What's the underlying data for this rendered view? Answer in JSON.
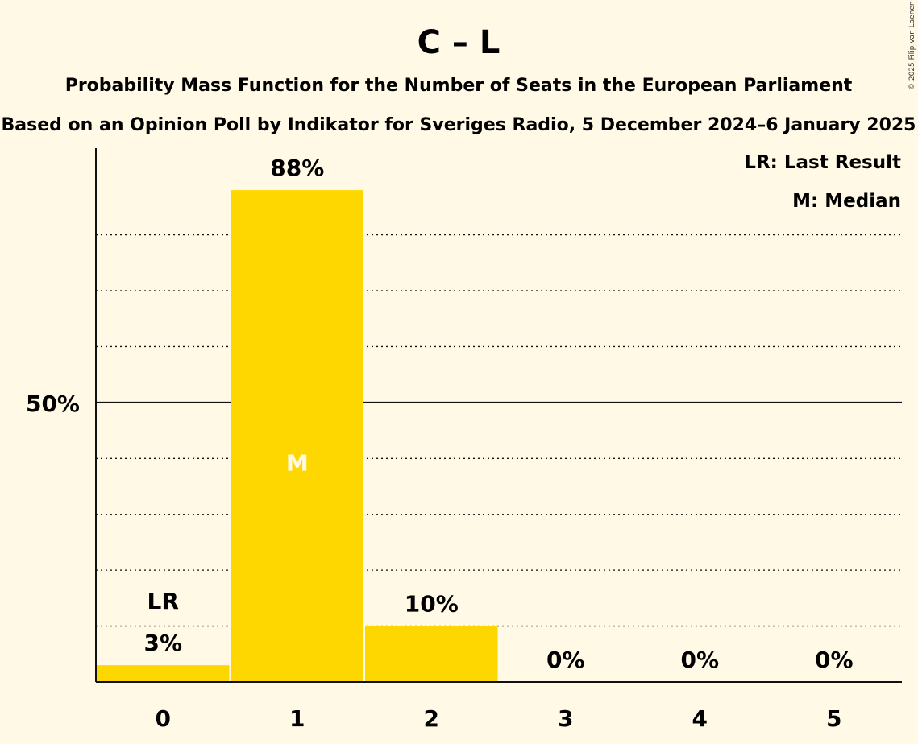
{
  "chart_data": {
    "type": "bar",
    "title": "C – L",
    "subtitle": "Probability Mass Function for the Number of Seats in the European Parliament",
    "subtitle2": "Based on an Opinion Poll by Indikator for Sveriges Radio, 5 December 2024–6 January 2025",
    "copyright": "© 2025 Filip van Laenen",
    "categories": [
      "0",
      "1",
      "2",
      "3",
      "4",
      "5"
    ],
    "values": [
      3,
      88,
      10,
      0,
      0,
      0
    ],
    "value_labels": [
      "3%",
      "88%",
      "10%",
      "0%",
      "0%",
      "0%"
    ],
    "ylim": [
      0,
      95
    ],
    "y_gridlines": [
      10,
      20,
      30,
      40,
      50,
      60,
      70,
      80
    ],
    "y_tick_label": {
      "value": 50,
      "label": "50%"
    },
    "bar_color": "#FFD700",
    "last_result": {
      "category": "0",
      "label": "LR"
    },
    "median": {
      "category": "1",
      "label": "M"
    },
    "legend": [
      "LR: Last Result",
      "M: Median"
    ],
    "legend_position": "top-right"
  }
}
